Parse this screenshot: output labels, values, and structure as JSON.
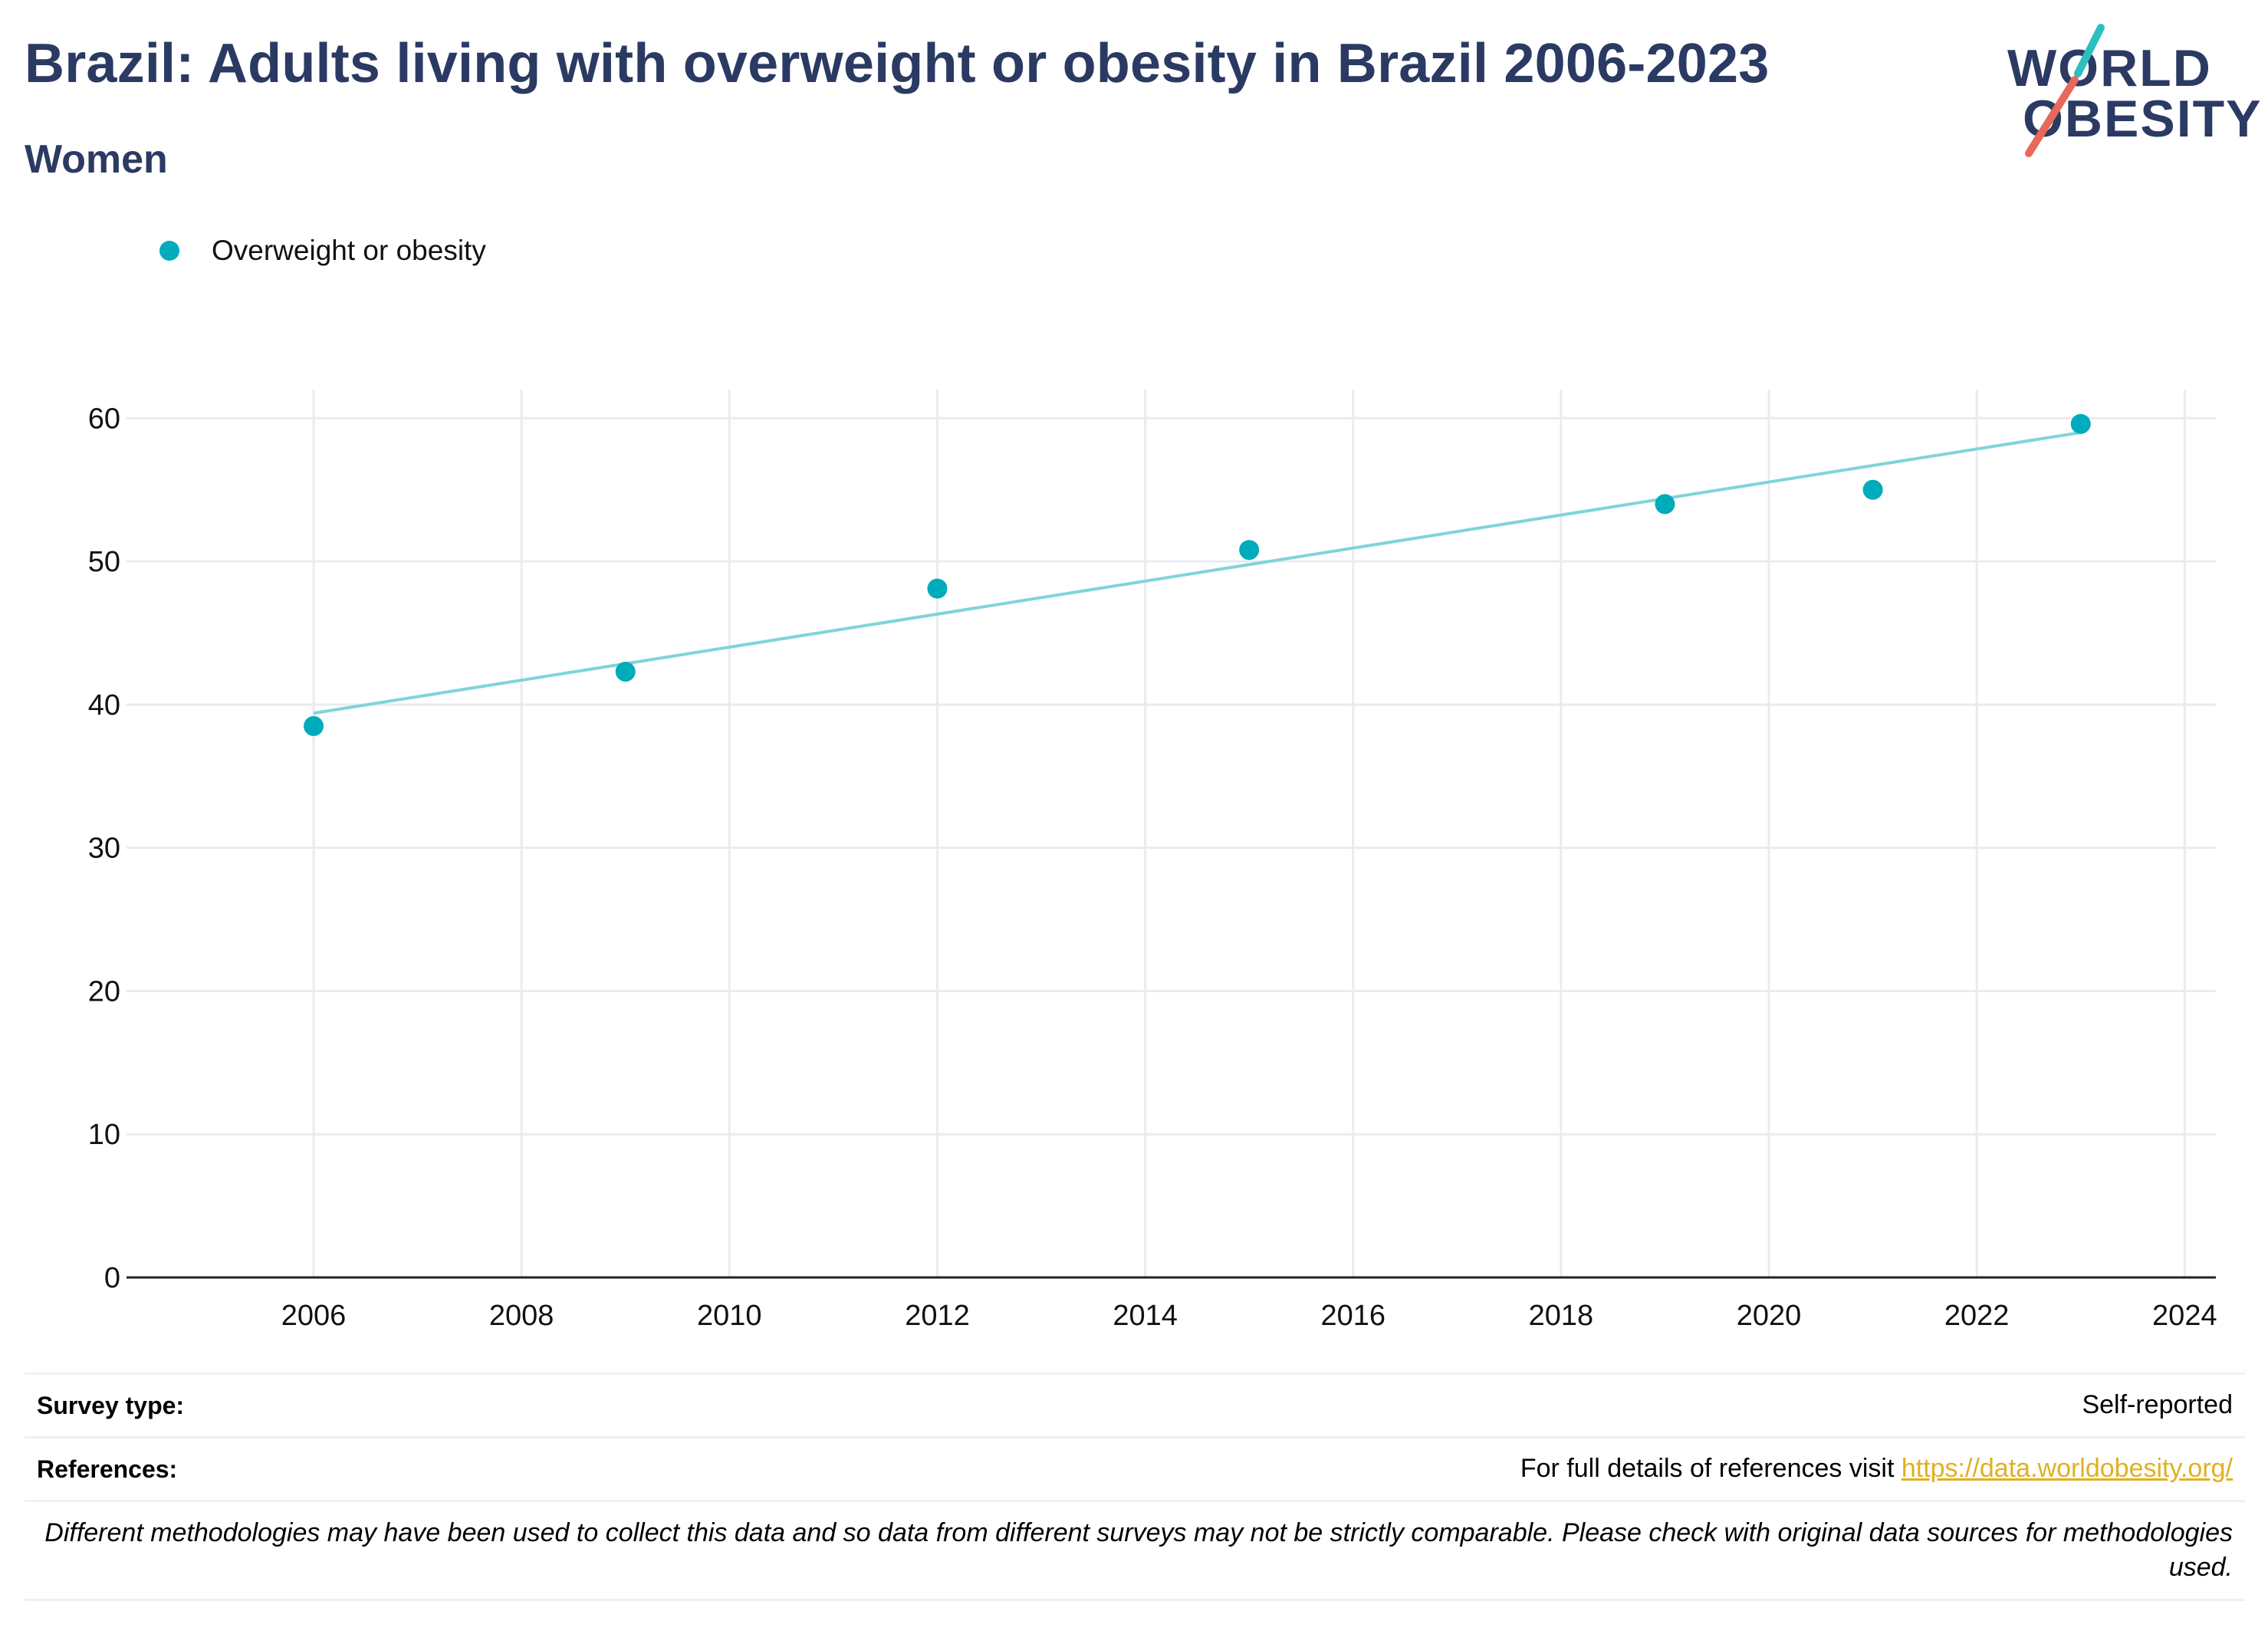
{
  "title": "Brazil: Adults living with overweight or obesity in Brazil 2006-2023",
  "subtitle": "Women",
  "logo": {
    "line1": "WORLD",
    "line2": "OBESITY"
  },
  "colors": {
    "title": "#2b3a63",
    "series": "#00abbb",
    "trend": "#7fd4da",
    "link": "#e0b020",
    "logo_teal": "#2bbfbf",
    "logo_red": "#e8685a"
  },
  "chart_data": {
    "type": "scatter",
    "title": "Brazil: Adults living with overweight or obesity in Brazil 2006-2023",
    "subtitle": "Women",
    "series": [
      {
        "name": "Overweight or obesity",
        "x": [
          2006,
          2009,
          2012,
          2015,
          2019,
          2021,
          2023
        ],
        "y": [
          38.5,
          42.3,
          48.1,
          50.8,
          54.0,
          55.0,
          59.6
        ]
      }
    ],
    "trendline": {
      "x": [
        2006,
        2023
      ],
      "y": [
        39.4,
        59.0
      ]
    },
    "xlim": [
      2004.2,
      2024.3
    ],
    "ylim": [
      0,
      63.5
    ],
    "xticks": [
      2006,
      2008,
      2010,
      2012,
      2014,
      2016,
      2018,
      2020,
      2022,
      2024
    ],
    "yticks": [
      0,
      10,
      20,
      30,
      40,
      50,
      60
    ],
    "grid": true,
    "legend_position": "top-left"
  },
  "footer": {
    "survey_label": "Survey type:",
    "survey_value": "Self-reported",
    "references_label": "References:",
    "references_text": "For full details of references visit ",
    "references_link": "https://data.worldobesity.org/",
    "note": "Different methodologies may have been used to collect this data and so data from different surveys may not be strictly comparable. Please check with original data sources for methodologies used."
  }
}
